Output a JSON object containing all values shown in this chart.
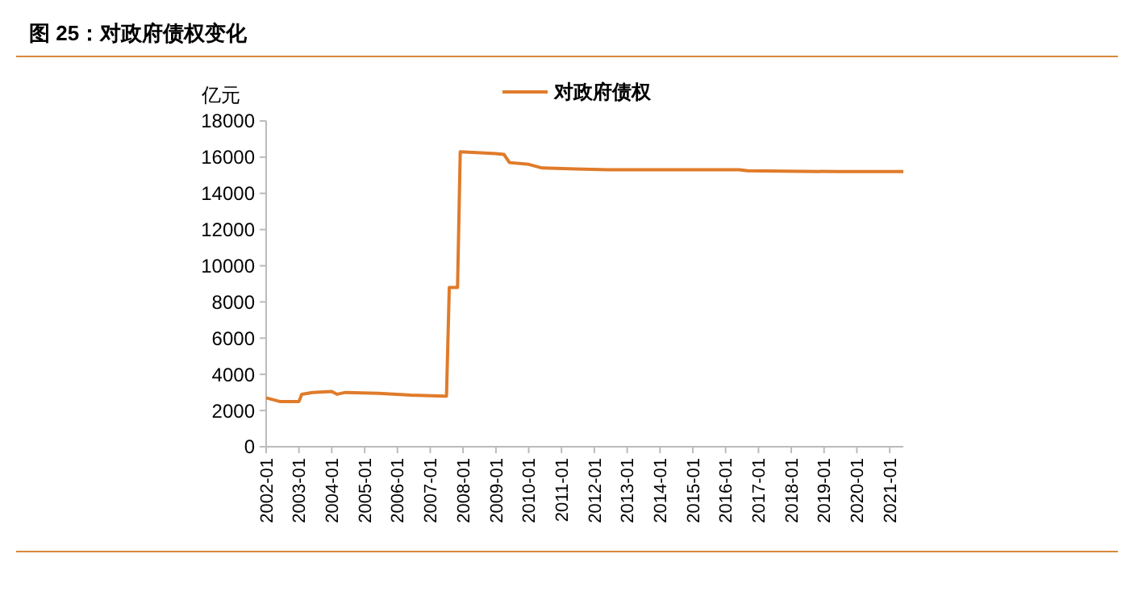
{
  "chart_data": {
    "type": "line",
    "title": "图 25：对政府债权变化",
    "ylabel": "亿元",
    "legend": "top",
    "grid": false,
    "marker": "none",
    "line_style": "solid",
    "xlim": [
      "2002-01",
      "2021-06"
    ],
    "xticks": [
      {
        "value": "2002-01",
        "label": "2002-01"
      },
      {
        "value": "2003-01",
        "label": "2003-01"
      },
      {
        "value": "2004-01",
        "label": "2004-01"
      },
      {
        "value": "2005-01",
        "label": "2005-01"
      },
      {
        "value": "2006-01",
        "label": "2006-01"
      },
      {
        "value": "2007-01",
        "label": "2007-01"
      },
      {
        "value": "2008-01",
        "label": "2008-01"
      },
      {
        "value": "2009-01",
        "label": "2009-01"
      },
      {
        "value": "2010-01",
        "label": "2010-01"
      },
      {
        "value": "2011-01",
        "label": "2011-01"
      },
      {
        "value": "2012-01",
        "label": "2012-01"
      },
      {
        "value": "2013-01",
        "label": "2013-01"
      },
      {
        "value": "2014-01",
        "label": "2014-01"
      },
      {
        "value": "2015-01",
        "label": "2015-01"
      },
      {
        "value": "2016-01",
        "label": "2016-01"
      },
      {
        "value": "2017-01",
        "label": "2017-01"
      },
      {
        "value": "2018-01",
        "label": "2018-01"
      },
      {
        "value": "2019-01",
        "label": "2019-01"
      },
      {
        "value": "2020-01",
        "label": "2020-01"
      },
      {
        "value": "2021-01",
        "label": "2021-01"
      }
    ],
    "ylim": [
      0,
      18000
    ],
    "yticks": [
      0,
      2000,
      4000,
      6000,
      8000,
      10000,
      12000,
      14000,
      16000,
      18000
    ],
    "x": [
      "2002-01",
      "2002-06",
      "2003-01",
      "2003-02",
      "2003-06",
      "2004-01",
      "2004-03",
      "2004-06",
      "2005-06",
      "2006-06",
      "2007-06",
      "2007-07",
      "2007-08",
      "2007-11",
      "2007-12",
      "2008-06",
      "2009-01",
      "2009-04",
      "2009-06",
      "2010-01",
      "2010-06",
      "2011-06",
      "2012-06",
      "2016-06",
      "2016-09",
      "2019-06",
      "2021-06"
    ],
    "series": [
      {
        "name": "对政府债权",
        "color": "#e07b2a",
        "values": [
          2700,
          2500,
          2500,
          2900,
          3000,
          3050,
          2900,
          3000,
          2950,
          2850,
          2800,
          2800,
          8800,
          8800,
          16300,
          16250,
          16200,
          16150,
          15700,
          15600,
          15400,
          15350,
          15300,
          15300,
          15250,
          15200,
          15200
        ]
      }
    ]
  }
}
